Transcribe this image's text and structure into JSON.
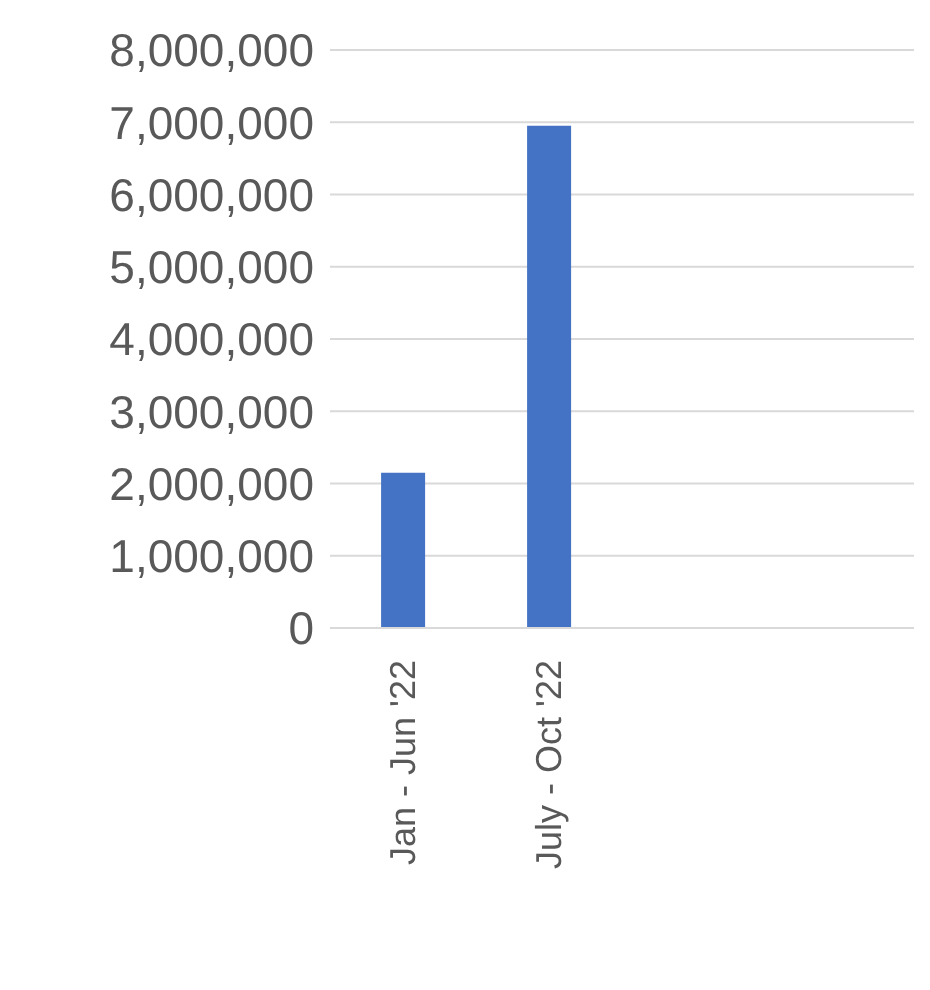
{
  "chart_data": {
    "type": "bar",
    "categories": [
      "Jan - Jun '22",
      "July - Oct '22",
      null,
      null
    ],
    "values": [
      2150000,
      6950000,
      null,
      null
    ],
    "color": "#4472c4",
    "ylim": [
      0,
      8000000
    ],
    "yticks": [
      0,
      {
        "value": 1000000,
        "label": "1,000,000"
      },
      {
        "value": 2000000,
        "label": "2,000,000"
      },
      {
        "value": 3000000,
        "label": "3,000,000"
      },
      {
        "value": 4000000,
        "label": "4,000,000"
      },
      {
        "value": 5000000,
        "label": "5,000,000"
      },
      {
        "value": 6000000,
        "label": "6,000,000"
      },
      {
        "value": 7000000,
        "label": "7,000,000"
      },
      {
        "value": 8000000,
        "label": "8,000,000"
      }
    ],
    "grid": "y"
  }
}
